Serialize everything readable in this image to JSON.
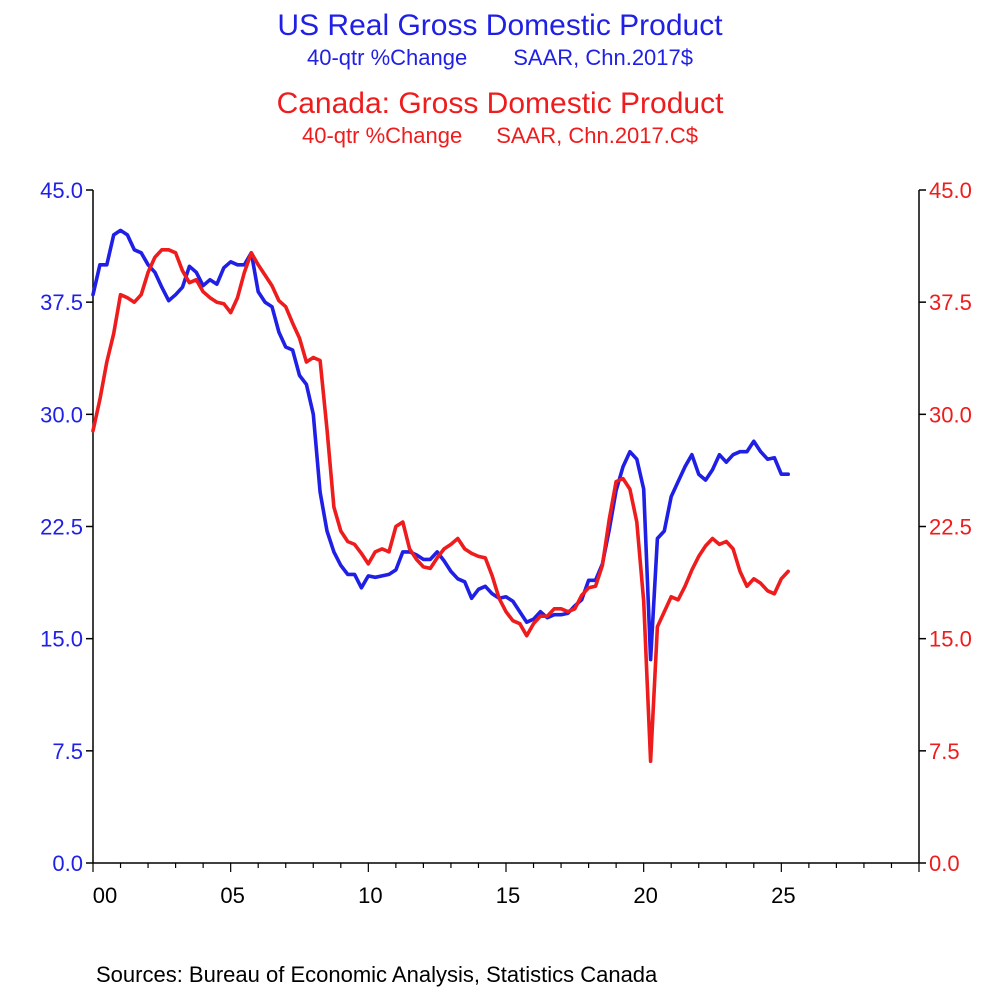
{
  "titles": {
    "us_title": "US Real Gross Domestic Product",
    "us_sub_left": "40-qtr %Change",
    "us_sub_right": "SAAR, Chn.2017$",
    "ca_title": "Canada: Gross Domestic Product",
    "ca_sub_left": "40-qtr %Change",
    "ca_sub_right": "SAAR, Chn.2017.C$"
  },
  "footer": {
    "sources": "Sources:  Bureau of Economic Analysis, Statistics Canada"
  },
  "colors": {
    "us": "#1f1fe6",
    "canada": "#ee1c1c",
    "axis": "#000000"
  },
  "chart_data": {
    "type": "line",
    "x_tick_labels": [
      "00",
      "05",
      "10",
      "15",
      "20",
      "25"
    ],
    "xlim": [
      2000.0,
      2030.0
    ],
    "y_left_tick_labels": [
      "45.0",
      "37.5",
      "30.0",
      "22.5",
      "15.0",
      "7.5",
      "0.0"
    ],
    "y_right_tick_labels": [
      "45.0",
      "37.5",
      "30.0",
      "22.5",
      "15.0",
      "7.5",
      "0.0"
    ],
    "ylim": [
      0,
      45
    ],
    "grid": false,
    "series": [
      {
        "name": "US Real Gross Domestic Product",
        "axis": "left",
        "x": [
          2000.0,
          2000.25,
          2000.5,
          2000.75,
          2001.0,
          2001.25,
          2001.5,
          2001.75,
          2002.0,
          2002.25,
          2002.5,
          2002.75,
          2003.0,
          2003.25,
          2003.5,
          2003.75,
          2004.0,
          2004.25,
          2004.5,
          2004.75,
          2005.0,
          2005.25,
          2005.5,
          2005.75,
          2006.0,
          2006.25,
          2006.5,
          2006.75,
          2007.0,
          2007.25,
          2007.5,
          2007.75,
          2008.0,
          2008.25,
          2008.5,
          2008.75,
          2009.0,
          2009.25,
          2009.5,
          2009.75,
          2010.0,
          2010.25,
          2010.5,
          2010.75,
          2011.0,
          2011.25,
          2011.5,
          2011.75,
          2012.0,
          2012.25,
          2012.5,
          2012.75,
          2013.0,
          2013.25,
          2013.5,
          2013.75,
          2014.0,
          2014.25,
          2014.5,
          2014.75,
          2015.0,
          2015.25,
          2015.5,
          2015.75,
          2016.0,
          2016.25,
          2016.5,
          2016.75,
          2017.0,
          2017.25,
          2017.5,
          2017.75,
          2018.0,
          2018.25,
          2018.5,
          2018.75,
          2019.0,
          2019.25,
          2019.5,
          2019.75,
          2020.0,
          2020.25,
          2020.5,
          2020.75,
          2021.0,
          2021.25,
          2021.5,
          2021.75,
          2022.0,
          2022.25,
          2022.5,
          2022.75,
          2023.0,
          2023.25,
          2023.5,
          2023.75,
          2024.0,
          2024.25,
          2024.5,
          2024.75,
          2025.0,
          2025.25
        ],
        "values": [
          38.0,
          40.0,
          40.0,
          42.0,
          42.3,
          42.0,
          41.0,
          40.8,
          40.0,
          39.5,
          38.5,
          37.6,
          38.0,
          38.5,
          39.9,
          39.5,
          38.6,
          39.0,
          38.7,
          39.8,
          40.2,
          40.0,
          40.0,
          40.8,
          38.2,
          37.5,
          37.2,
          35.5,
          34.5,
          34.3,
          32.6,
          32.0,
          30.0,
          24.8,
          22.2,
          20.8,
          19.9,
          19.3,
          19.3,
          18.4,
          19.2,
          19.1,
          19.2,
          19.3,
          19.6,
          20.8,
          20.8,
          20.6,
          20.3,
          20.3,
          20.8,
          20.2,
          19.5,
          19.0,
          18.8,
          17.7,
          18.3,
          18.5,
          18.0,
          17.7,
          17.8,
          17.5,
          16.8,
          16.1,
          16.3,
          16.8,
          16.4,
          16.6,
          16.6,
          16.7,
          17.2,
          17.6,
          18.9,
          18.9,
          20.0,
          22.3,
          24.9,
          26.5,
          27.5,
          27.0,
          25.0,
          13.6,
          21.7,
          22.2,
          24.5,
          25.5,
          26.5,
          27.3,
          26.0,
          25.6,
          26.3,
          27.3,
          26.8,
          27.3,
          27.5,
          27.5,
          28.2,
          27.5,
          27.0,
          27.1,
          26.0,
          26.0
        ]
      },
      {
        "name": "Canada: Gross Domestic Product",
        "axis": "right",
        "x": [
          2000.0,
          2000.25,
          2000.5,
          2000.75,
          2001.0,
          2001.25,
          2001.5,
          2001.75,
          2002.0,
          2002.25,
          2002.5,
          2002.75,
          2003.0,
          2003.25,
          2003.5,
          2003.75,
          2004.0,
          2004.25,
          2004.5,
          2004.75,
          2005.0,
          2005.25,
          2005.5,
          2005.75,
          2006.0,
          2006.25,
          2006.5,
          2006.75,
          2007.0,
          2007.25,
          2007.5,
          2007.75,
          2008.0,
          2008.25,
          2008.5,
          2008.75,
          2009.0,
          2009.25,
          2009.5,
          2009.75,
          2010.0,
          2010.25,
          2010.5,
          2010.75,
          2011.0,
          2011.25,
          2011.5,
          2011.75,
          2012.0,
          2012.25,
          2012.5,
          2012.75,
          2013.0,
          2013.25,
          2013.5,
          2013.75,
          2014.0,
          2014.25,
          2014.5,
          2014.75,
          2015.0,
          2015.25,
          2015.5,
          2015.75,
          2016.0,
          2016.25,
          2016.5,
          2016.75,
          2017.0,
          2017.25,
          2017.5,
          2017.75,
          2018.0,
          2018.25,
          2018.5,
          2018.75,
          2019.0,
          2019.25,
          2019.5,
          2019.75,
          2020.0,
          2020.25,
          2020.5,
          2020.75,
          2021.0,
          2021.25,
          2021.5,
          2021.75,
          2022.0,
          2022.25,
          2022.5,
          2022.75,
          2023.0,
          2023.25,
          2023.5,
          2023.75,
          2024.0,
          2024.25,
          2024.5,
          2024.75,
          2025.0,
          2025.25
        ],
        "values": [
          28.9,
          31.0,
          33.5,
          35.4,
          38.0,
          37.8,
          37.5,
          38.0,
          39.5,
          40.5,
          41.0,
          41.0,
          40.8,
          39.6,
          38.8,
          39.0,
          38.2,
          37.8,
          37.5,
          37.4,
          36.8,
          37.8,
          39.5,
          40.8,
          40.0,
          39.3,
          38.6,
          37.6,
          37.2,
          36.1,
          35.1,
          33.5,
          33.8,
          33.6,
          29.0,
          23.8,
          22.2,
          21.5,
          21.3,
          20.7,
          20.0,
          20.8,
          21.0,
          20.8,
          22.5,
          22.8,
          21.0,
          20.3,
          19.8,
          19.7,
          20.4,
          21.0,
          21.3,
          21.7,
          21.0,
          20.7,
          20.5,
          20.4,
          19.2,
          17.7,
          16.8,
          16.2,
          16.0,
          15.2,
          16.0,
          16.5,
          16.5,
          17.0,
          17.0,
          16.8,
          17.0,
          17.9,
          18.4,
          18.5,
          19.9,
          23.0,
          25.5,
          25.7,
          25.0,
          22.8,
          17.5,
          6.8,
          15.8,
          16.8,
          17.8,
          17.6,
          18.5,
          19.6,
          20.5,
          21.2,
          21.7,
          21.3,
          21.5,
          21.0,
          19.5,
          18.5,
          19.0,
          18.7,
          18.2,
          18.0,
          19.0,
          19.5
        ]
      }
    ]
  }
}
